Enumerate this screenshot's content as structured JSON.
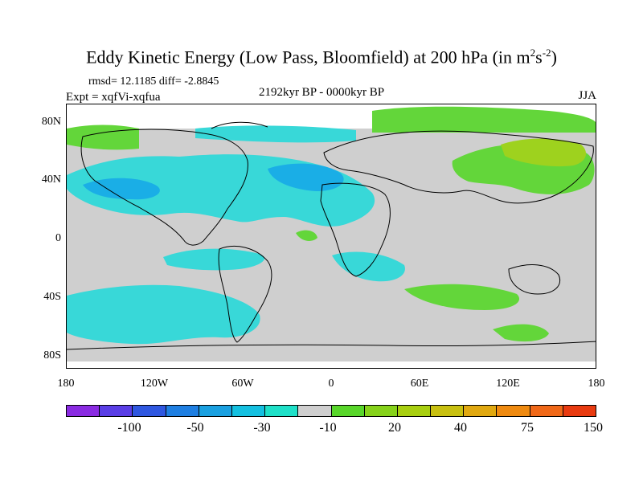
{
  "title_main": "Eddy Kinetic Energy (Low Pass, Bloomfield) at 200 hPa (in m",
  "title_sup1": "2",
  "title_mid": "s",
  "title_sup2": "-2",
  "title_end": ")",
  "stats": "rmsd= 12.1185 diff= -2.8845",
  "expt": "Expt = xqfVi-xqfua",
  "period": "2192kyr BP - 0000kyr BP",
  "season": "JJA",
  "lat_labels": [
    "80N",
    "40N",
    "0",
    "40S",
    "80S"
  ],
  "lon_labels": [
    "180",
    "120W",
    "60W",
    "0",
    "60E",
    "120E",
    "180"
  ],
  "colorbar": {
    "colors": [
      "#8a2be2",
      "#5a3ee6",
      "#2f57e0",
      "#1f7fe2",
      "#1aa0e0",
      "#14c0e0",
      "#1ee0c8",
      "#cfcfcf",
      "#58d62a",
      "#86d21a",
      "#a8cf10",
      "#c8c010",
      "#e0a810",
      "#ef8a10",
      "#f06818",
      "#e83a10"
    ],
    "labels": [
      "-100",
      "-50",
      "-30",
      "-10",
      "20",
      "40",
      "75",
      "150"
    ]
  },
  "palette": {
    "neutral": "#cfcfcf",
    "cyan": "#38d8d8",
    "blue": "#1aaee6",
    "green": "#63d63a",
    "yellowgreen": "#9ed21e"
  }
}
